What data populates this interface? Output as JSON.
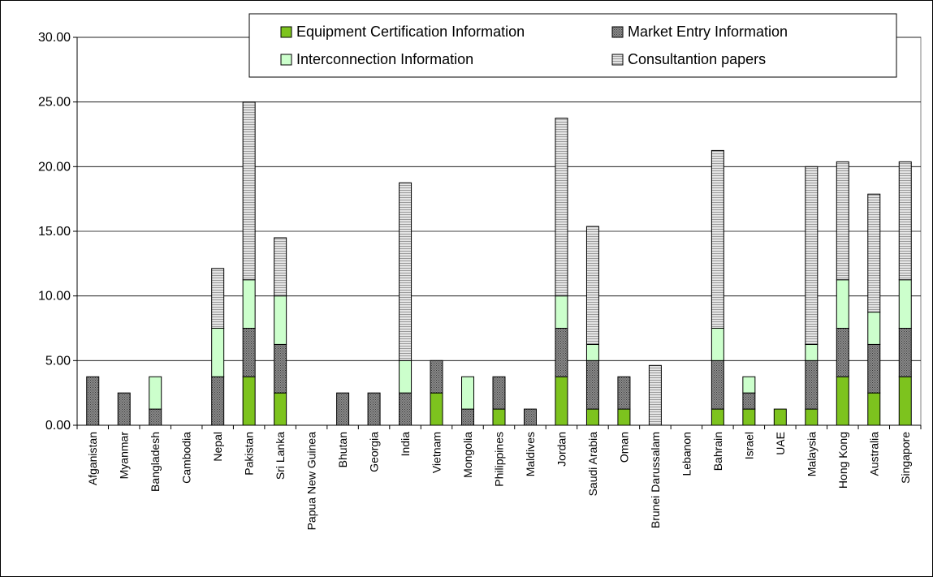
{
  "chart_data": {
    "type": "bar",
    "stacked": true,
    "title": "",
    "xlabel": "",
    "ylabel": "",
    "ylim": [
      0,
      30
    ],
    "yticks": [
      "0.00",
      "5.00",
      "10.00",
      "15.00",
      "20.00",
      "25.00",
      "30.00"
    ],
    "grid": true,
    "legend_position": "top-right",
    "categories": [
      "Afganistan",
      "Myanmar",
      "Bangladesh",
      "Cambodia",
      "Nepal",
      "Pakistan",
      "Sri Lanka",
      "Papua New Guinea",
      "Bhutan",
      "Georgia",
      "India",
      "Vietnam",
      "Mongolia",
      "Philippines",
      "Maldives",
      "Jordan",
      "Saudi Arabia",
      "Oman",
      "Brunei Darussalam",
      "Lebanon",
      "Bahrain",
      "Israel",
      "UAE",
      "Malaysia",
      "Hong Kong",
      "Australia",
      "Singapore"
    ],
    "series": [
      {
        "name": "Equipment Certification Information",
        "color": "#7dc31e",
        "pattern": "solid",
        "values": [
          0,
          0,
          0,
          0,
          0,
          3.75,
          2.5,
          0,
          0,
          0,
          0,
          2.5,
          0,
          1.25,
          0,
          3.75,
          1.25,
          1.25,
          0,
          0,
          1.25,
          1.25,
          1.25,
          1.25,
          3.75,
          2.5,
          3.75
        ]
      },
      {
        "name": "Market Entry Information",
        "color": "#808080",
        "pattern": "dark-dots",
        "values": [
          3.75,
          2.5,
          1.25,
          0,
          3.75,
          3.75,
          3.75,
          0,
          2.5,
          2.5,
          2.5,
          2.5,
          1.25,
          2.5,
          1.25,
          3.75,
          3.75,
          2.5,
          0,
          0,
          3.75,
          1.25,
          0,
          3.75,
          3.75,
          3.75,
          3.75
        ]
      },
      {
        "name": "Interconnection Information",
        "color": "#ccffcc",
        "pattern": "solid",
        "values": [
          0,
          0,
          2.5,
          0,
          3.75,
          3.75,
          3.75,
          0,
          0,
          0,
          2.5,
          0,
          2.5,
          0,
          0,
          2.5,
          1.25,
          0,
          0,
          0,
          2.5,
          1.25,
          0,
          1.25,
          3.75,
          2.5,
          3.75
        ]
      },
      {
        "name": "Consultantion papers",
        "color": "#c0c0c0",
        "pattern": "light-lines",
        "values": [
          0,
          0,
          0,
          0,
          4.625,
          13.75,
          4.5,
          0,
          0,
          0,
          13.75,
          0,
          0,
          0,
          0,
          13.75,
          9.125,
          0,
          4.625,
          0,
          13.75,
          0,
          0,
          13.75,
          9.125,
          9.125,
          9.125
        ]
      }
    ]
  }
}
